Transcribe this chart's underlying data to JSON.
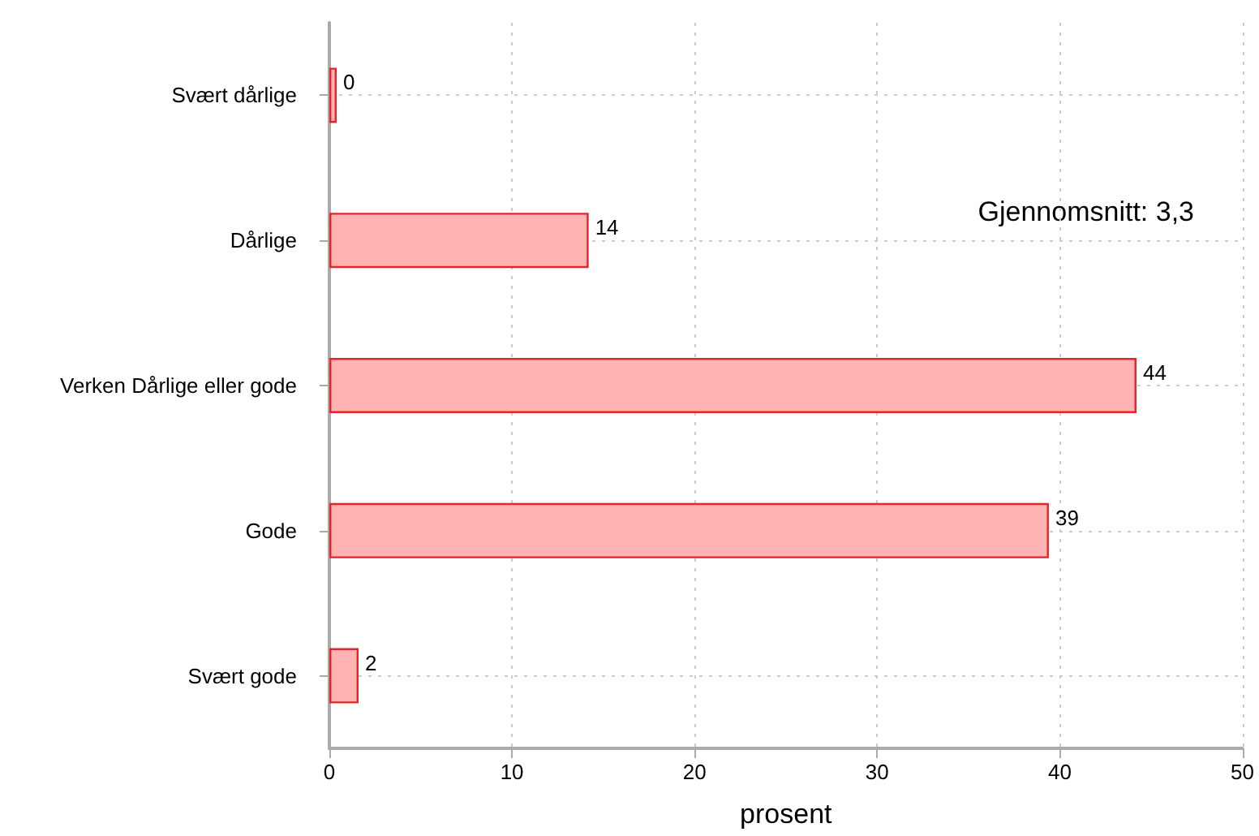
{
  "chart_data": {
    "type": "bar",
    "orientation": "horizontal",
    "categories": [
      "Svært dårlige",
      "Dårlige",
      "Verken Dårlige eller gode",
      "Gode",
      "Svært gode"
    ],
    "values": [
      0.4,
      14.2,
      44.2,
      39.4,
      1.6
    ],
    "value_labels": [
      "0",
      "14",
      "44",
      "39",
      "2"
    ],
    "color": "#ffb3b3",
    "xlabel": "prosent",
    "xlim": [
      0,
      50
    ],
    "xticks": [
      0,
      10,
      20,
      30,
      40,
      50
    ],
    "grid": true,
    "annotations": [
      "Gjennomsnitt: 3,3"
    ]
  }
}
